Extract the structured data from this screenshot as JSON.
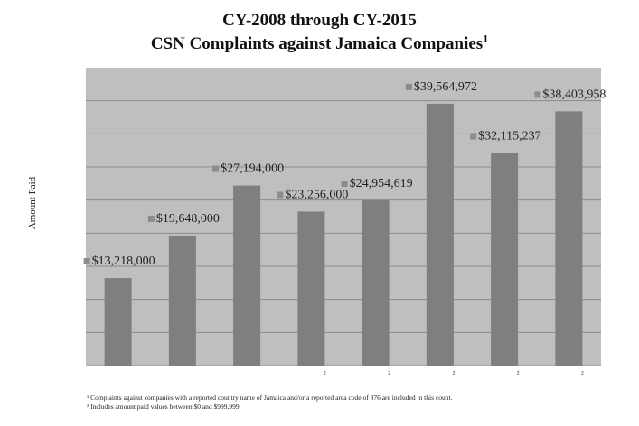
{
  "chart_data": {
    "type": "bar",
    "title": "CY-2008 through CY-2015",
    "subtitle": "CSN Complaints against Jamaica Companies",
    "subtitle_footnote_mark": "1",
    "xlabel": "",
    "ylabel": "Amount Paid",
    "categories": [
      "",
      "",
      "",
      "²",
      "²",
      "²",
      "²",
      "²"
    ],
    "values": [
      13218000,
      19648000,
      27194000,
      23256000,
      24954619,
      39564972,
      32115237,
      38403958
    ],
    "data_labels": [
      "$13,218,000",
      "$19,648,000",
      "$27,194,000",
      "$23,256,000",
      "$24,954,619",
      "$39,564,972",
      "$32,115,237",
      "$38,403,958"
    ],
    "ylim": [
      0,
      45000000
    ],
    "grid": true,
    "legend": "none",
    "colors": {
      "bar": "#7f7f7f",
      "plot_bg": "#bfbfbf",
      "grid": "#8c8c8c",
      "marker": "#8c8c8c"
    }
  },
  "footnotes": [
    "¹ Complaints against companies with a reported country name of Jamaica and/or a reported area code of 876 are included in this count.",
    "² Includes amount paid values between $0 and $999,999."
  ]
}
